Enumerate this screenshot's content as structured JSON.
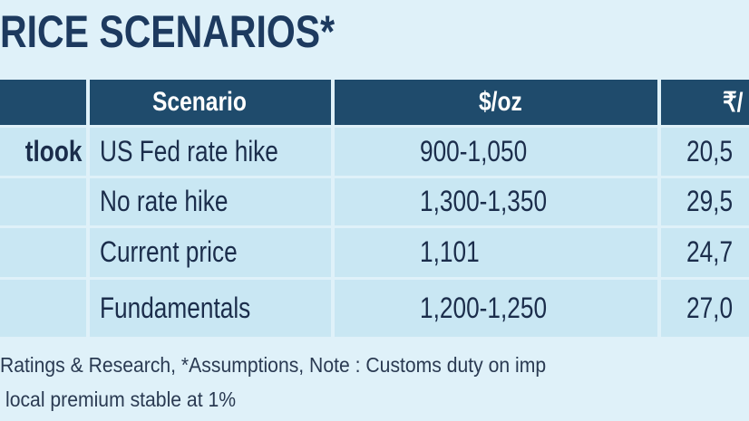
{
  "header": {
    "title": "RICE SCENARIOS*"
  },
  "table": {
    "columns": [
      "Scenario",
      "$/oz",
      "₹/"
    ],
    "rows": [
      {
        "label": "tlook",
        "cells": [
          "US Fed rate hike",
          "900-1,050",
          "20,5"
        ]
      },
      {
        "cells": [
          "No rate hike",
          "1,300-1,350",
          "29,5"
        ]
      },
      {
        "cells": [
          "Current price",
          "1,101",
          "24,7"
        ]
      },
      {
        "cells": [
          "Fundamentals",
          "1,200-1,250",
          "27,0"
        ]
      }
    ]
  },
  "footer": {
    "lines": [
      "Ratings & Research, *Assumptions, Note : Customs duty on imp",
      "local premium stable at 1%"
    ]
  }
}
